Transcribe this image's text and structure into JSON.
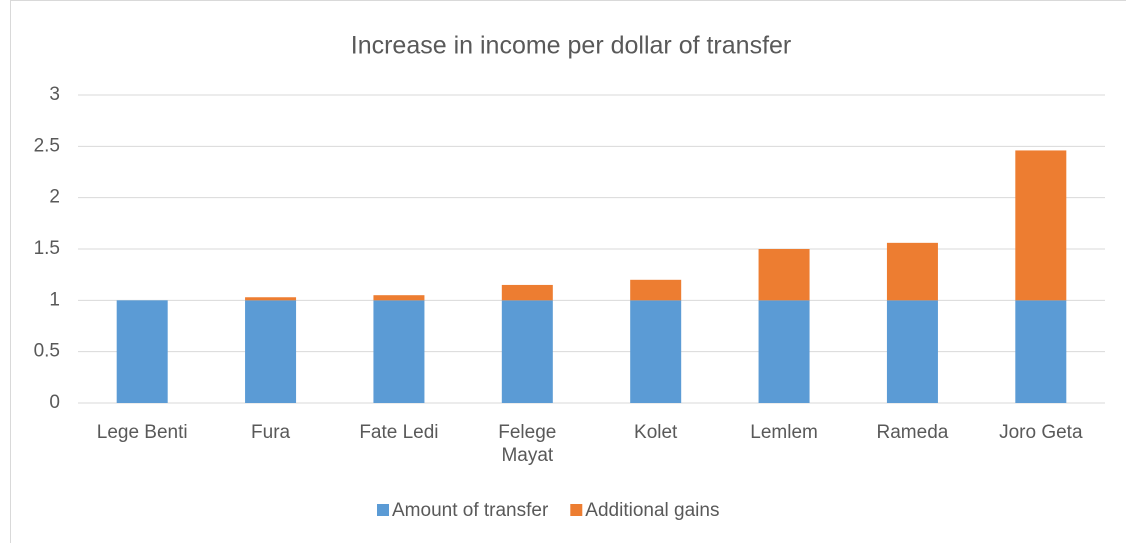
{
  "chart_data": {
    "type": "stacked-bar",
    "title": "Increase in income per dollar of transfer",
    "categories": [
      "Lege Benti",
      "Fura",
      "Fate Ledi",
      "Felege Mayat",
      "Kolet",
      "Lemlem",
      "Rameda",
      "Joro Geta"
    ],
    "series": [
      {
        "name": "Amount of transfer",
        "color": "#5b9bd5",
        "values": [
          1,
          1,
          1,
          1,
          1,
          1,
          1,
          1
        ]
      },
      {
        "name": "Additional gains",
        "color": "#ed7d31",
        "values": [
          0,
          0.03,
          0.05,
          0.15,
          0.2,
          0.5,
          0.56,
          1.46
        ]
      }
    ],
    "ylim": [
      0,
      3
    ],
    "yticks": [
      0,
      0.5,
      1,
      1.5,
      2,
      2.5,
      3
    ],
    "grid": true,
    "legend": "bottom"
  }
}
